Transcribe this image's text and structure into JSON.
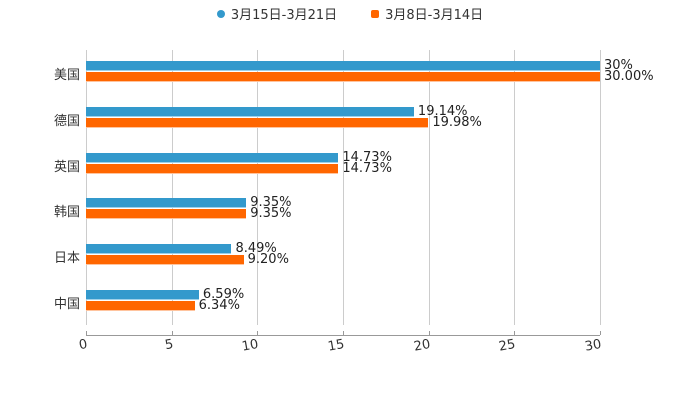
{
  "chart_data": {
    "type": "bar",
    "orientation": "horizontal",
    "title": "",
    "xlabel": "",
    "ylabel": "",
    "xlim": [
      0,
      30
    ],
    "x_ticks": [
      "0",
      "5",
      "10",
      "15",
      "20",
      "25",
      "30"
    ],
    "grid": true,
    "legend_position": "top",
    "categories": [
      "美国",
      "德国",
      "英国",
      "韩国",
      "日本",
      "中国"
    ],
    "series": [
      {
        "name": "3月15日-3月21日",
        "color": "#3399cc",
        "values": [
          30,
          19.14,
          14.73,
          9.35,
          8.49,
          6.59
        ],
        "labels": [
          "30%",
          "19.14%",
          "14.73%",
          "9.35%",
          "8.49%",
          "6.59%"
        ]
      },
      {
        "name": "3月8日-3月14日",
        "color": "#ff6600",
        "values": [
          30.0,
          19.98,
          14.73,
          9.35,
          9.2,
          6.34
        ],
        "labels": [
          "30.00%",
          "19.98%",
          "14.73%",
          "9.35%",
          "9.20%",
          "6.34%"
        ]
      }
    ]
  },
  "legend": {
    "series1": "3月15日-3月21日",
    "series2": "3月8日-3月14日"
  }
}
